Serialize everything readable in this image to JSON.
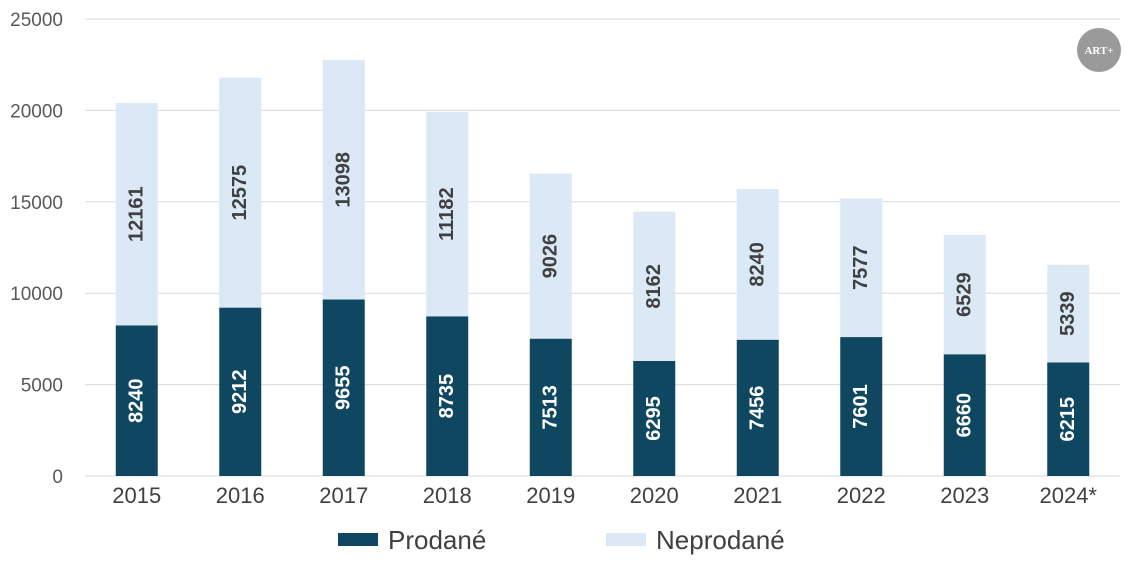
{
  "chart_data": {
    "type": "bar",
    "stacked": true,
    "categories": [
      "2015",
      "2016",
      "2017",
      "2018",
      "2019",
      "2020",
      "2021",
      "2022",
      "2023",
      "2024*"
    ],
    "series": [
      {
        "name": "Prodané",
        "color": "#104760",
        "label_color": "#ffffff",
        "values": [
          8240,
          9212,
          9655,
          8735,
          7513,
          6295,
          7456,
          7601,
          6660,
          6215
        ]
      },
      {
        "name": "Neprodané",
        "color": "#dbe8f6",
        "label_color": "#404040",
        "values": [
          12161,
          12575,
          13098,
          11182,
          9026,
          8162,
          8240,
          7577,
          6529,
          5339
        ]
      }
    ],
    "ylim": [
      0,
      25000
    ],
    "yticks": [
      0,
      5000,
      10000,
      15000,
      20000,
      25000
    ],
    "title": "",
    "xlabel": "",
    "ylabel": "",
    "grid": true,
    "legend_position": "bottom",
    "data_labels": "vertical-inside"
  },
  "logo": {
    "text": "ART+",
    "color": "#9a9a9a"
  }
}
